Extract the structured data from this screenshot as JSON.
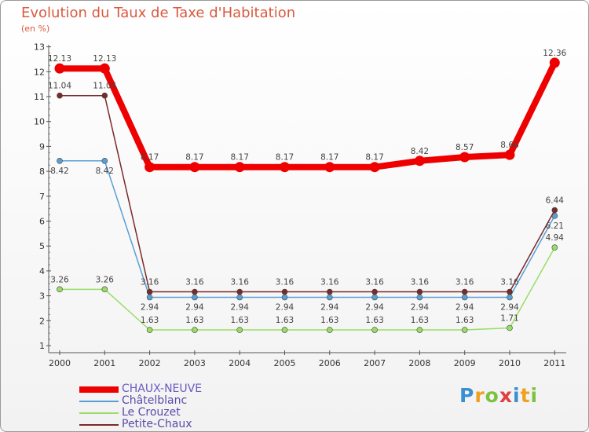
{
  "chart_data": {
    "type": "line",
    "title": "Evolution du Taux de Taxe d'Habitation",
    "subtitle": "(en %)",
    "x": [
      "2000",
      "2001",
      "2002",
      "2003",
      "2004",
      "2005",
      "2006",
      "2007",
      "2008",
      "2009",
      "2010",
      "2011"
    ],
    "ylim": [
      1,
      13
    ],
    "yticks": [
      "1",
      "2",
      "3",
      "4",
      "5",
      "6",
      "7",
      "8",
      "9",
      "10",
      "11",
      "12",
      "13"
    ],
    "grid": false,
    "legend_position": "bottom-left",
    "series": [
      {
        "name": "CHAUX-NEUVE",
        "color": "#ee0000",
        "values": [
          12.13,
          12.13,
          8.17,
          8.17,
          8.17,
          8.17,
          8.17,
          8.17,
          8.42,
          8.57,
          8.66,
          12.36
        ],
        "labels": [
          "12.13",
          "12.13",
          "8.17",
          "8.17",
          "8.17",
          "8.17",
          "8.17",
          "8.17",
          "8.42",
          "8.57",
          "8.66",
          "12.36"
        ]
      },
      {
        "name": "Châtelblanc",
        "color": "#5a9fd4",
        "values": [
          8.42,
          8.42,
          2.94,
          2.94,
          2.94,
          2.94,
          2.94,
          2.94,
          2.94,
          2.94,
          2.94,
          6.21
        ],
        "labels": [
          "8.42",
          "8.42",
          "2.94",
          "2.94",
          "2.94",
          "2.94",
          "2.94",
          "2.94",
          "2.94",
          "2.94",
          "2.94",
          "6.21"
        ]
      },
      {
        "name": "Le Crouzet",
        "color": "#99dd66",
        "values": [
          3.26,
          3.26,
          1.63,
          1.63,
          1.63,
          1.63,
          1.63,
          1.63,
          1.63,
          1.63,
          1.71,
          4.94
        ],
        "labels": [
          "3.26",
          "3.26",
          "1.63",
          "1.63",
          "1.63",
          "1.63",
          "1.63",
          "1.63",
          "1.63",
          "1.63",
          "1.71",
          "4.94"
        ]
      },
      {
        "name": "Petite-Chaux",
        "color": "#7a2a2a",
        "values": [
          11.04,
          11.04,
          3.16,
          3.16,
          3.16,
          3.16,
          3.16,
          3.16,
          3.16,
          3.16,
          3.16,
          6.44
        ],
        "labels": [
          "11.04",
          "11.04",
          "3.16",
          "3.16",
          "3.16",
          "3.16",
          "3.16",
          "3.16",
          "3.16",
          "3.16",
          "3.16",
          "6.44"
        ]
      }
    ]
  },
  "logo": {
    "letters": [
      "P",
      "r",
      "o",
      "x",
      "i",
      "t",
      "i"
    ],
    "colors": [
      "#3b8fd0",
      "#f0a020",
      "#7cc242",
      "#e04040",
      "#3b8fd0",
      "#f0a020",
      "#7cc242"
    ]
  }
}
